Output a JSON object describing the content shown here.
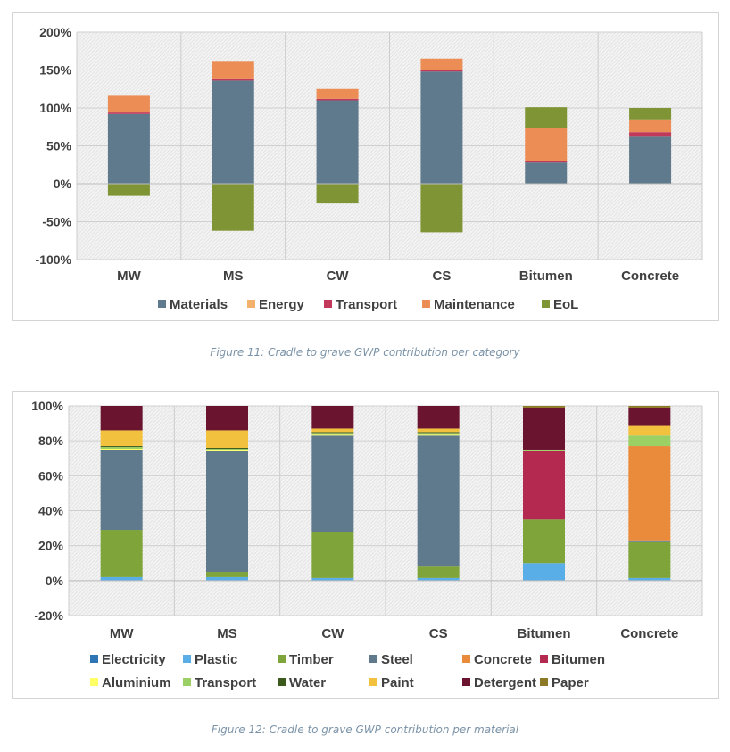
{
  "chart_data": [
    {
      "type": "bar",
      "stacked": true,
      "categories": [
        "MW",
        "MS",
        "CW",
        "CS",
        "Bitumen",
        "Concrete"
      ],
      "ylim": [
        -100,
        200
      ],
      "yticks": [
        -100,
        -50,
        0,
        50,
        100,
        150,
        200
      ],
      "ytick_labels": [
        "-100%",
        "-50%",
        "0%",
        "50%",
        "100%",
        "150%",
        "200%"
      ],
      "series": [
        {
          "name": "Materials",
          "color": "#5f7a8c",
          "values": [
            92,
            136,
            110,
            148,
            28,
            62
          ]
        },
        {
          "name": "Energy",
          "color": "#f3b26b",
          "values": [
            0,
            0,
            0,
            0,
            0,
            0
          ]
        },
        {
          "name": "Transport",
          "color": "#c0395a",
          "values": [
            2,
            3,
            2,
            2,
            2,
            6
          ]
        },
        {
          "name": "Maintenance",
          "color": "#ec8d55",
          "values": [
            22,
            23,
            13,
            15,
            43,
            17
          ]
        },
        {
          "name": "EoL",
          "color": "#7f9435",
          "values": [
            -16,
            -62,
            -26,
            -64,
            28,
            15
          ]
        }
      ],
      "legend_position": "bottom",
      "caption": "Figure 11: Cradle to grave GWP contribution per category"
    },
    {
      "type": "bar",
      "stacked": true,
      "categories": [
        "MW",
        "MS",
        "CW",
        "CS",
        "Bitumen",
        "Concrete"
      ],
      "ylim": [
        -20,
        100
      ],
      "yticks": [
        -20,
        0,
        20,
        40,
        60,
        80,
        100
      ],
      "ytick_labels": [
        "-20%",
        "0%",
        "20%",
        "40%",
        "60%",
        "80%",
        "100%"
      ],
      "series": [
        {
          "name": "Electricity",
          "color": "#2e75b6",
          "values": [
            0,
            0,
            0,
            0,
            0,
            0
          ]
        },
        {
          "name": "Plastic",
          "color": "#5aaee8",
          "values": [
            2,
            2,
            1.5,
            1.5,
            10,
            1.5
          ]
        },
        {
          "name": "Timber",
          "color": "#7ea43a",
          "values": [
            27,
            3,
            26.5,
            6.5,
            25,
            20.5
          ]
        },
        {
          "name": "Steel",
          "color": "#5f7a8c",
          "values": [
            46,
            69,
            55,
            75,
            0,
            1
          ]
        },
        {
          "name": "Concrete",
          "color": "#ea8b3b",
          "values": [
            0,
            0,
            0,
            0,
            0,
            54
          ]
        },
        {
          "name": "Bitumen",
          "color": "#b3294f",
          "values": [
            0,
            0,
            0,
            0,
            39,
            0
          ]
        },
        {
          "name": "Aluminium",
          "color": "#ffff66",
          "values": [
            0.5,
            0.5,
            0.5,
            0.5,
            0,
            0
          ]
        },
        {
          "name": "Transport",
          "color": "#9bd064",
          "values": [
            1,
            1,
            1,
            1,
            1,
            6
          ]
        },
        {
          "name": "Water",
          "color": "#3d5a1e",
          "values": [
            0.5,
            0.5,
            0.5,
            0.5,
            0,
            0
          ]
        },
        {
          "name": "Paint",
          "color": "#f2c13e",
          "values": [
            9,
            10,
            2,
            2,
            0,
            6
          ]
        },
        {
          "name": "Detergent",
          "color": "#6b1430",
          "values": [
            14,
            14,
            13,
            13,
            24,
            10
          ]
        },
        {
          "name": "Paper",
          "color": "#8e7a26",
          "values": [
            0,
            0,
            0,
            0,
            1,
            1
          ]
        }
      ],
      "legend_position": "bottom",
      "caption": "Figure 12: Cradle to grave GWP contribution per material"
    }
  ]
}
